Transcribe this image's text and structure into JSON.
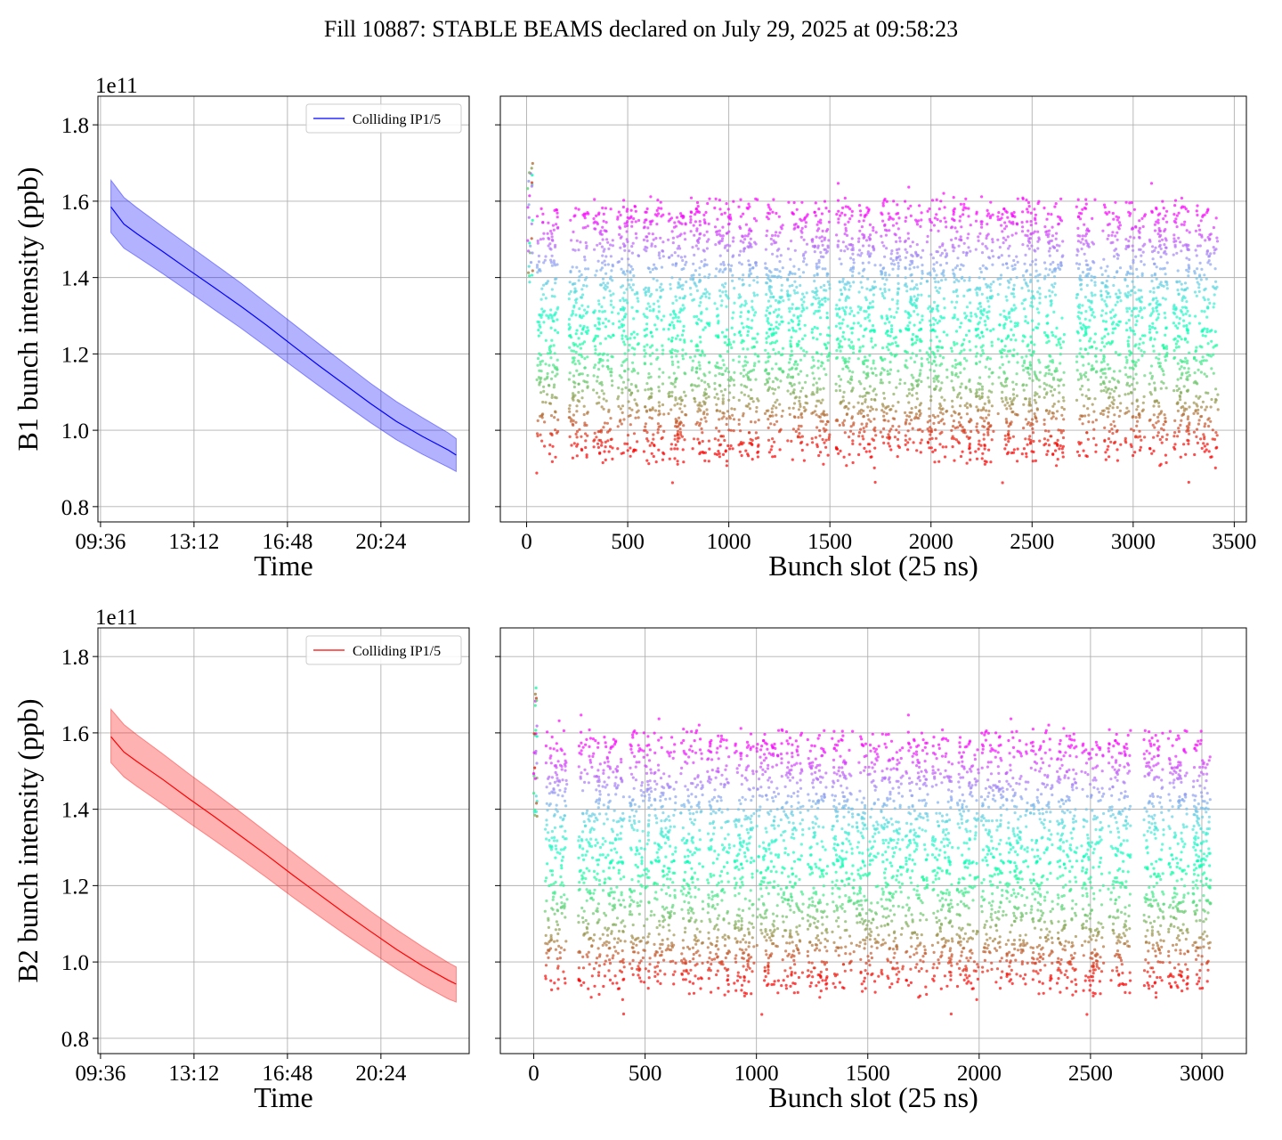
{
  "title": "Fill 10887: STABLE BEAMS declared on July 29, 2025 at 09:58:23",
  "chart_data": [
    {
      "id": "b1_time",
      "type": "line",
      "xlabel": "Time",
      "ylabel": "B1 bunch intensity (ppb)",
      "offset_label": "1e11",
      "x_ticks": [
        "09:36",
        "13:12",
        "16:48",
        "20:24"
      ],
      "x_tick_hours": [
        9.6,
        13.2,
        16.8,
        20.4
      ],
      "xlim": [
        9.5,
        23.8
      ],
      "ylim": [
        0.76,
        1.875
      ],
      "y_ticks": [
        0.8,
        1.0,
        1.2,
        1.4,
        1.6,
        1.8
      ],
      "y_tick_labels": [
        "0.8",
        "1.0",
        "1.2",
        "1.4",
        "1.6",
        "1.8"
      ],
      "legend": "Colliding IP1/5",
      "legend_loc": "upper right",
      "color": "#0000ff",
      "fill_color": "#0000ff",
      "series": [
        {
          "name": "Colliding IP1/5",
          "x": [
            10.0,
            10.5,
            11.0,
            12.0,
            13.0,
            14.0,
            15.0,
            16.0,
            17.0,
            18.0,
            19.0,
            20.0,
            21.0,
            22.0,
            23.0,
            23.3
          ],
          "mean": [
            1.585,
            1.54,
            1.515,
            1.468,
            1.42,
            1.373,
            1.325,
            1.275,
            1.222,
            1.17,
            1.12,
            1.07,
            1.023,
            0.984,
            0.948,
            0.935
          ],
          "upper": [
            1.655,
            1.61,
            1.583,
            1.533,
            1.484,
            1.435,
            1.386,
            1.333,
            1.28,
            1.227,
            1.175,
            1.123,
            1.075,
            1.033,
            0.993,
            0.978
          ],
          "lower": [
            1.518,
            1.477,
            1.455,
            1.41,
            1.363,
            1.315,
            1.268,
            1.218,
            1.167,
            1.117,
            1.068,
            1.02,
            0.975,
            0.937,
            0.903,
            0.892
          ]
        }
      ],
      "grid": true
    },
    {
      "id": "b1_slot",
      "type": "scatter",
      "xlabel": "Bunch slot (25 ns)",
      "ylabel": "",
      "xlim": [
        -130,
        3560
      ],
      "x_ticks": [
        0,
        500,
        1000,
        1500,
        2000,
        2500,
        3000,
        3500
      ],
      "x_tick_labels": [
        "0",
        "500",
        "1000",
        "1500",
        "2000",
        "2500",
        "3000",
        "3500"
      ],
      "ylim": [
        0.76,
        1.875
      ],
      "y_ticks": [
        0.8,
        1.0,
        1.2,
        1.4,
        1.6,
        1.8
      ],
      "colormap": "rainbow",
      "trains": [
        [
          50,
          155
        ],
        [
          210,
          305
        ],
        [
          330,
          430
        ],
        [
          450,
          555
        ],
        [
          580,
          680
        ],
        [
          700,
          790
        ],
        [
          810,
          905
        ],
        [
          930,
          1030
        ],
        [
          1050,
          1150
        ],
        [
          1180,
          1270
        ],
        [
          1290,
          1390
        ],
        [
          1410,
          1500
        ],
        [
          1530,
          1620
        ],
        [
          1640,
          1730
        ],
        [
          1750,
          1850
        ],
        [
          1870,
          1960
        ],
        [
          1980,
          2080
        ],
        [
          2100,
          2200
        ],
        [
          2220,
          2310
        ],
        [
          2330,
          2430
        ],
        [
          2450,
          2540
        ],
        [
          2560,
          2660
        ],
        [
          2720,
          2820
        ],
        [
          2840,
          2940
        ],
        [
          2960,
          3060
        ],
        [
          3080,
          3170
        ],
        [
          3200,
          3280
        ],
        [
          3300,
          3420
        ]
      ],
      "pilot": [
        5,
        30
      ],
      "range": [
        0.84,
        1.8
      ],
      "grid": true
    },
    {
      "id": "b2_time",
      "type": "line",
      "xlabel": "Time",
      "ylabel": "B2 bunch intensity (ppb)",
      "offset_label": "1e11",
      "x_ticks": [
        "09:36",
        "13:12",
        "16:48",
        "20:24"
      ],
      "x_tick_hours": [
        9.6,
        13.2,
        16.8,
        20.4
      ],
      "xlim": [
        9.5,
        23.8
      ],
      "ylim": [
        0.76,
        1.875
      ],
      "y_ticks": [
        0.8,
        1.0,
        1.2,
        1.4,
        1.6,
        1.8
      ],
      "y_tick_labels": [
        "0.8",
        "1.0",
        "1.2",
        "1.4",
        "1.6",
        "1.8"
      ],
      "legend": "Colliding IP1/5",
      "legend_loc": "upper right",
      "color": "#ff0000",
      "fill_color": "#ff0000",
      "series": [
        {
          "name": "Colliding IP1/5",
          "x": [
            10.0,
            10.5,
            11.0,
            12.0,
            13.0,
            14.0,
            15.0,
            16.0,
            17.0,
            18.0,
            19.0,
            20.0,
            21.0,
            22.0,
            23.0,
            23.3
          ],
          "mean": [
            1.59,
            1.55,
            1.525,
            1.478,
            1.428,
            1.38,
            1.33,
            1.28,
            1.228,
            1.178,
            1.128,
            1.08,
            1.033,
            0.99,
            0.952,
            0.942
          ],
          "upper": [
            1.662,
            1.622,
            1.595,
            1.545,
            1.493,
            1.443,
            1.392,
            1.34,
            1.287,
            1.235,
            1.183,
            1.133,
            1.085,
            1.04,
            0.998,
            0.987
          ],
          "lower": [
            1.522,
            1.485,
            1.46,
            1.413,
            1.365,
            1.318,
            1.27,
            1.221,
            1.17,
            1.121,
            1.073,
            1.027,
            0.982,
            0.94,
            0.903,
            0.895
          ]
        }
      ],
      "grid": true
    },
    {
      "id": "b2_slot",
      "type": "scatter",
      "xlabel": "Bunch slot (25 ns)",
      "ylabel": "",
      "xlim": [
        -150,
        3200
      ],
      "x_ticks": [
        0,
        500,
        1000,
        1500,
        2000,
        2500,
        3000
      ],
      "x_tick_labels": [
        "0",
        "500",
        "1000",
        "1500",
        "2000",
        "2500",
        "3000"
      ],
      "ylim": [
        0.76,
        1.875
      ],
      "y_ticks": [
        0.8,
        1.0,
        1.2,
        1.4,
        1.6,
        1.8
      ],
      "colormap": "rainbow",
      "trains": [
        [
          50,
          150
        ],
        [
          200,
          300
        ],
        [
          310,
          410
        ],
        [
          430,
          530
        ],
        [
          540,
          640
        ],
        [
          660,
          760
        ],
        [
          780,
          880
        ],
        [
          900,
          990
        ],
        [
          1000,
          1100
        ],
        [
          1110,
          1210
        ],
        [
          1230,
          1320
        ],
        [
          1340,
          1440
        ],
        [
          1450,
          1550
        ],
        [
          1560,
          1660
        ],
        [
          1670,
          1770
        ],
        [
          1790,
          1880
        ],
        [
          1900,
          2000
        ],
        [
          2010,
          2110
        ],
        [
          2120,
          2220
        ],
        [
          2230,
          2330
        ],
        [
          2350,
          2440
        ],
        [
          2460,
          2560
        ],
        [
          2580,
          2680
        ],
        [
          2740,
          2830
        ],
        [
          2850,
          2940
        ],
        [
          2960,
          3040
        ]
      ],
      "pilot": [
        0,
        15
      ],
      "range": [
        0.85,
        1.78
      ],
      "grid": true
    }
  ]
}
